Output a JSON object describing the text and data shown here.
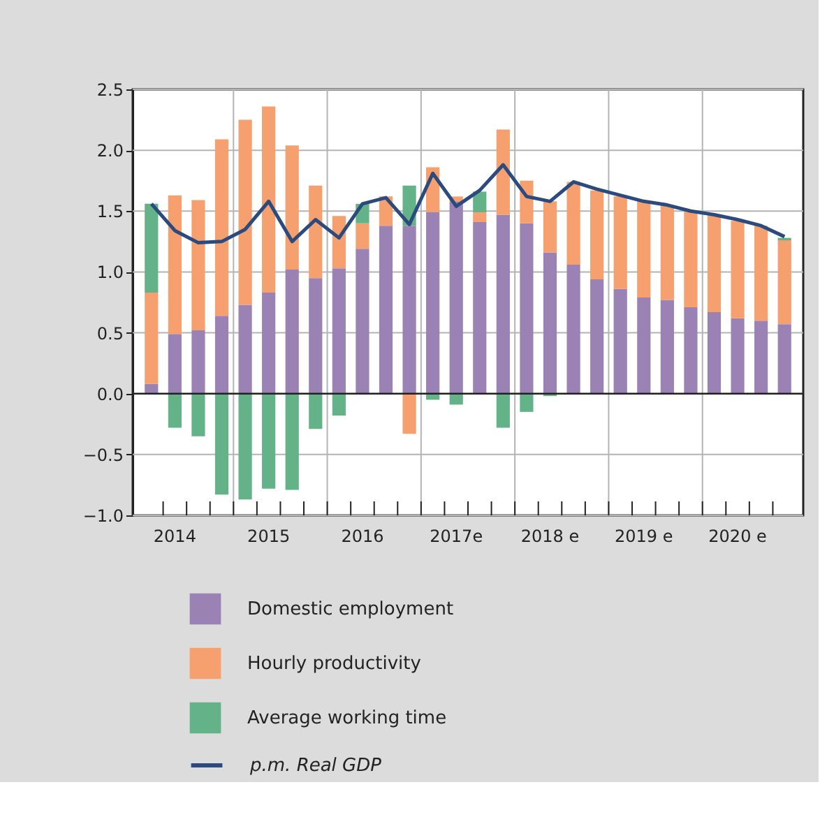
{
  "chart_data": {
    "type": "bar",
    "stacked": true,
    "categories": [
      null,
      "2014",
      null,
      null,
      null,
      "2015",
      null,
      null,
      null,
      "2016",
      null,
      null,
      null,
      "2017e",
      null,
      null,
      null,
      "2018 e",
      null,
      null,
      null,
      "2019 e",
      null,
      null,
      null,
      "2020 e",
      null,
      null
    ],
    "series": [
      {
        "name": "Domestic employment",
        "color": "#9b82b4",
        "values": [
          0.08,
          0.49,
          0.52,
          0.64,
          0.73,
          0.83,
          1.02,
          0.95,
          1.03,
          1.19,
          1.38,
          1.38,
          1.49,
          1.58,
          1.41,
          1.47,
          1.4,
          1.16,
          1.06,
          0.94,
          0.86,
          0.79,
          0.77,
          0.71,
          0.67,
          0.62,
          0.6,
          0.57
        ]
      },
      {
        "name": "Hourly productivity",
        "color": "#f5a06e",
        "values": [
          0.75,
          1.14,
          1.07,
          1.45,
          1.52,
          1.53,
          1.02,
          0.76,
          0.43,
          0.21,
          0.24,
          -0.33,
          0.37,
          0.04,
          0.08,
          0.7,
          0.35,
          0.42,
          0.68,
          0.73,
          0.76,
          0.79,
          0.78,
          0.79,
          0.8,
          0.8,
          0.78,
          0.69
        ]
      },
      {
        "name": "Average working time",
        "color": "#64b287",
        "values": [
          0.73,
          -0.28,
          -0.35,
          -0.83,
          -0.87,
          -0.78,
          -0.79,
          -0.29,
          -0.18,
          0.16,
          null,
          0.33,
          -0.05,
          -0.09,
          0.17,
          -0.28,
          -0.15,
          -0.02,
          null,
          null,
          null,
          null,
          null,
          null,
          null,
          null,
          null,
          0.02
        ]
      },
      {
        "name": "p.m. Real GDP",
        "type": "line",
        "color": "#2b4a7e",
        "values": [
          1.56,
          1.34,
          1.24,
          1.25,
          1.35,
          1.58,
          1.25,
          1.43,
          1.28,
          1.56,
          1.61,
          1.39,
          1.81,
          1.54,
          1.67,
          1.88,
          1.62,
          1.58,
          1.74,
          1.68,
          1.63,
          1.58,
          1.55,
          1.5,
          1.47,
          1.43,
          1.38,
          1.29
        ]
      }
    ],
    "ylim": [
      -1.0,
      2.5
    ],
    "yticks": [
      {
        "value": -1.0,
        "label": "−1.0"
      },
      {
        "value": -0.5,
        "label": "−0.5"
      },
      {
        "value": 0.0,
        "label": "0.0"
      },
      {
        "value": 0.5,
        "label": "0.5"
      },
      {
        "value": 1.0,
        "label": "1.0"
      },
      {
        "value": 1.5,
        "label": "1.5"
      },
      {
        "value": 2.0,
        "label": "2.0"
      },
      {
        "value": 2.5,
        "label": "2.5"
      }
    ],
    "grid": true,
    "legend": "bottom"
  }
}
